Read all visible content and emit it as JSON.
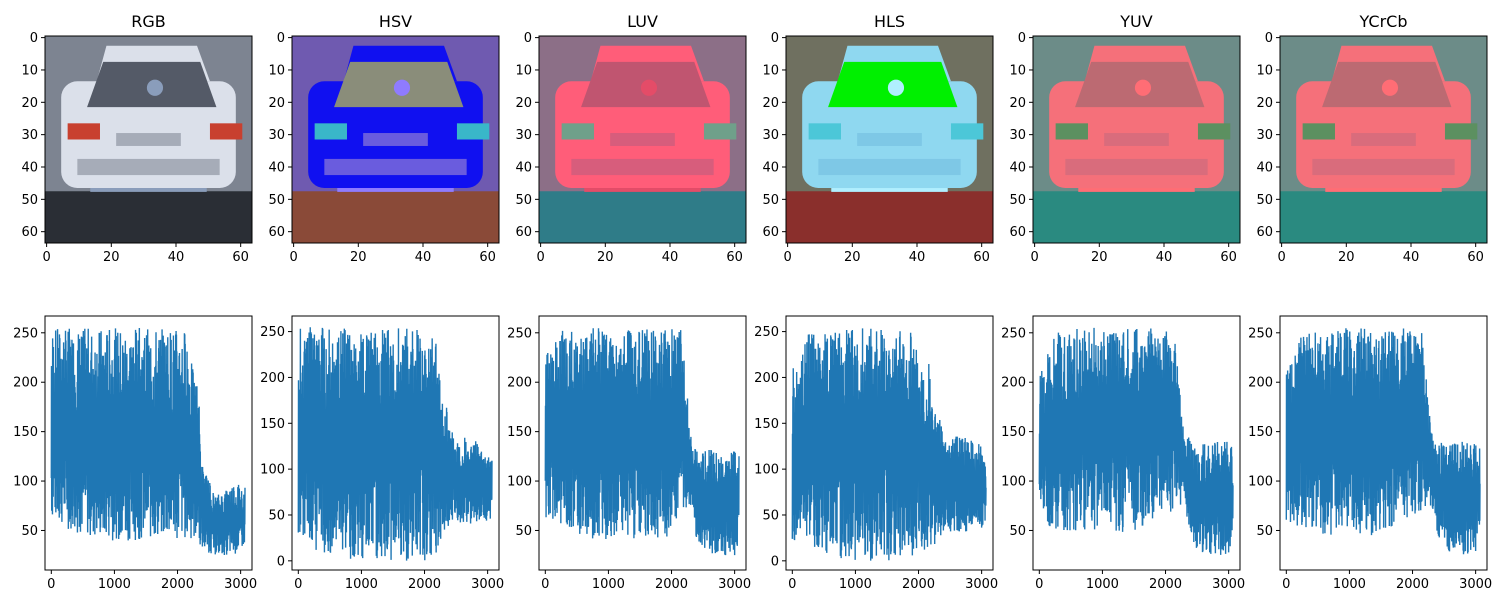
{
  "figure": {
    "background": "#ffffff"
  },
  "image_panels": [
    {
      "title": "RGB",
      "xlim": [
        0,
        63
      ],
      "ylim": [
        63,
        0
      ],
      "xticks": [
        0,
        20,
        40,
        60
      ],
      "yticks": [
        0,
        10,
        20,
        30,
        40,
        50,
        60
      ],
      "palette": {
        "sky": "#7d8491",
        "body": "#dbe0ea",
        "window": "#545a67",
        "lights": "#c8402f",
        "road": "#2a2e35",
        "bumper": "#a6acb8",
        "accent": "#8a9dbb"
      }
    },
    {
      "title": "HSV",
      "xlim": [
        0,
        63
      ],
      "ylim": [
        63,
        0
      ],
      "xticks": [
        0,
        20,
        40,
        60
      ],
      "yticks": [
        0,
        10,
        20,
        30,
        40,
        50,
        60
      ],
      "palette": {
        "sky": "#6f5ab0",
        "body": "#1010f0",
        "window": "#8a8d7a",
        "lights": "#39b7c9",
        "road": "#8a4a38",
        "bumper": "#6a5cde",
        "accent": "#8f7bff"
      }
    },
    {
      "title": "LUV",
      "xlim": [
        0,
        63
      ],
      "ylim": [
        63,
        0
      ],
      "xticks": [
        0,
        20,
        40,
        60
      ],
      "yticks": [
        0,
        10,
        20,
        30,
        40,
        50,
        60
      ],
      "palette": {
        "sky": "#8c6f87",
        "body": "#ff5d79",
        "window": "#c05570",
        "lights": "#6fa08a",
        "road": "#2f7c88",
        "bumper": "#d75d7c",
        "accent": "#e44c68"
      }
    },
    {
      "title": "HLS",
      "xlim": [
        0,
        63
      ],
      "ylim": [
        63,
        0
      ],
      "xticks": [
        0,
        20,
        40,
        60
      ],
      "yticks": [
        0,
        10,
        20,
        30,
        40,
        50,
        60
      ],
      "palette": {
        "sky": "#6f7060",
        "body": "#8fd8f0",
        "window": "#00f000",
        "lights": "#4cc7d8",
        "road": "#8a2f2c",
        "bumper": "#7ec8e6",
        "accent": "#b0efff"
      }
    },
    {
      "title": "YUV",
      "xlim": [
        0,
        63
      ],
      "ylim": [
        63,
        0
      ],
      "xticks": [
        0,
        20,
        40,
        60
      ],
      "yticks": [
        0,
        10,
        20,
        30,
        40,
        50,
        60
      ],
      "palette": {
        "sky": "#6c8c88",
        "body": "#f5707a",
        "window": "#bc6a72",
        "lights": "#5c9060",
        "road": "#2a8a80",
        "bumper": "#d96c7c",
        "accent": "#ff6d75"
      }
    },
    {
      "title": "YCrCb",
      "xlim": [
        0,
        63
      ],
      "ylim": [
        63,
        0
      ],
      "xticks": [
        0,
        20,
        40,
        60
      ],
      "yticks": [
        0,
        10,
        20,
        30,
        40,
        50,
        60
      ],
      "palette": {
        "sky": "#6c8c88",
        "body": "#f5707a",
        "window": "#bc6a72",
        "lights": "#5c9060",
        "road": "#2a8a80",
        "bumper": "#d96c7c",
        "accent": "#ff6d75"
      }
    }
  ],
  "chart_data": [
    {
      "type": "line",
      "panel": "RGB",
      "xlim": [
        -100,
        3180
      ],
      "ylim": [
        10,
        267
      ],
      "xticks": [
        0,
        1000,
        2000,
        3000
      ],
      "yticks": [
        50,
        100,
        150,
        200,
        250
      ],
      "series": [
        {
          "color": "#1f77b4",
          "envelope": [
            [
              0,
              60,
              255
            ],
            [
              300,
              50,
              255
            ],
            [
              700,
              40,
              255
            ],
            [
              1100,
              40,
              255
            ],
            [
              1500,
              40,
              255
            ],
            [
              1900,
              40,
              255
            ],
            [
              2150,
              40,
              255
            ],
            [
              2250,
              40,
              210
            ],
            [
              2330,
              40,
              200
            ],
            [
              2380,
              30,
              120
            ],
            [
              2600,
              25,
              85
            ],
            [
              2900,
              25,
              100
            ],
            [
              3071,
              35,
              95
            ]
          ]
        }
      ]
    },
    {
      "type": "line",
      "panel": "HSV",
      "xlim": [
        -100,
        3180
      ],
      "ylim": [
        -10,
        267
      ],
      "xticks": [
        0,
        1000,
        2000,
        3000
      ],
      "yticks": [
        0,
        50,
        100,
        150,
        200,
        250
      ],
      "series": [
        {
          "color": "#1f77b4",
          "envelope": [
            [
              0,
              30,
              255
            ],
            [
              300,
              10,
              255
            ],
            [
              700,
              0,
              255
            ],
            [
              1100,
              0,
              255
            ],
            [
              1500,
              0,
              255
            ],
            [
              1900,
              0,
              255
            ],
            [
              2150,
              0,
              255
            ],
            [
              2250,
              10,
              210
            ],
            [
              2400,
              40,
              150
            ],
            [
              2600,
              40,
              135
            ],
            [
              2900,
              40,
              130
            ],
            [
              3071,
              45,
              110
            ]
          ]
        }
      ]
    },
    {
      "type": "line",
      "panel": "LUV",
      "xlim": [
        -100,
        3180
      ],
      "ylim": [
        10,
        267
      ],
      "xticks": [
        0,
        1000,
        2000,
        3000
      ],
      "yticks": [
        50,
        100,
        150,
        200,
        250
      ],
      "series": [
        {
          "color": "#1f77b4",
          "envelope": [
            [
              0,
              60,
              230
            ],
            [
              300,
              55,
              255
            ],
            [
              700,
              40,
              255
            ],
            [
              1100,
              40,
              255
            ],
            [
              1500,
              40,
              255
            ],
            [
              1900,
              40,
              255
            ],
            [
              2150,
              70,
              255
            ],
            [
              2330,
              75,
              140
            ],
            [
              2400,
              35,
              132
            ],
            [
              2700,
              25,
              132
            ],
            [
              3000,
              25,
              130
            ],
            [
              3071,
              40,
              125
            ]
          ]
        }
      ]
    },
    {
      "type": "line",
      "panel": "HLS",
      "xlim": [
        -100,
        3180
      ],
      "ylim": [
        -10,
        267
      ],
      "xticks": [
        0,
        1000,
        2000,
        3000
      ],
      "yticks": [
        0,
        50,
        100,
        150,
        200,
        250
      ],
      "series": [
        {
          "color": "#1f77b4",
          "envelope": [
            [
              0,
              20,
              210
            ],
            [
              300,
              15,
              255
            ],
            [
              700,
              0,
              255
            ],
            [
              1100,
              0,
              255
            ],
            [
              1500,
              0,
              255
            ],
            [
              1900,
              0,
              255
            ],
            [
              2150,
              10,
              220
            ],
            [
              2300,
              20,
              160
            ],
            [
              2450,
              30,
              140
            ],
            [
              2700,
              30,
              135
            ],
            [
              3000,
              35,
              130
            ],
            [
              3071,
              40,
              110
            ]
          ]
        }
      ]
    },
    {
      "type": "line",
      "panel": "YUV",
      "xlim": [
        -100,
        3180
      ],
      "ylim": [
        10,
        267
      ],
      "xticks": [
        0,
        1000,
        2000,
        3000
      ],
      "yticks": [
        50,
        100,
        150,
        200,
        250
      ],
      "series": [
        {
          "color": "#1f77b4",
          "envelope": [
            [
              0,
              55,
              220
            ],
            [
              300,
              50,
              255
            ],
            [
              700,
              45,
              255
            ],
            [
              1100,
              45,
              255
            ],
            [
              1500,
              45,
              255
            ],
            [
              1900,
              60,
              255
            ],
            [
              2150,
              70,
              250
            ],
            [
              2300,
              75,
              150
            ],
            [
              2450,
              30,
              140
            ],
            [
              2700,
              25,
              140
            ],
            [
              3000,
              25,
              140
            ],
            [
              3071,
              35,
              140
            ]
          ]
        }
      ]
    },
    {
      "type": "line",
      "panel": "YCrCb",
      "xlim": [
        -100,
        3180
      ],
      "ylim": [
        10,
        267
      ],
      "xticks": [
        0,
        1000,
        2000,
        3000
      ],
      "yticks": [
        50,
        100,
        150,
        200,
        250
      ],
      "series": [
        {
          "color": "#1f77b4",
          "envelope": [
            [
              0,
              55,
              215
            ],
            [
              300,
              50,
              255
            ],
            [
              700,
              45,
              255
            ],
            [
              1100,
              45,
              255
            ],
            [
              1500,
              45,
              255
            ],
            [
              1900,
              60,
              255
            ],
            [
              2150,
              70,
              250
            ],
            [
              2300,
              75,
              150
            ],
            [
              2450,
              30,
              140
            ],
            [
              2700,
              25,
              140
            ],
            [
              3000,
              25,
              140
            ],
            [
              3071,
              35,
              140
            ]
          ]
        }
      ]
    }
  ]
}
